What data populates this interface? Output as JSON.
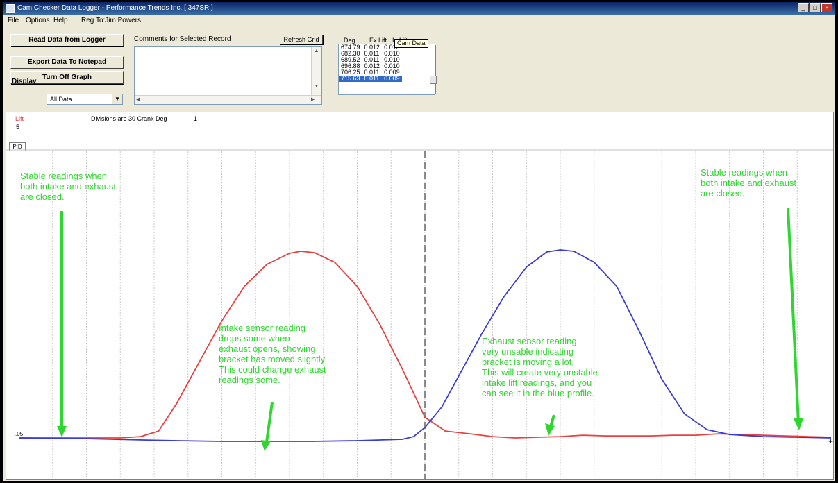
{
  "window": {
    "title": "Cam Checker Data Logger - Performance Trends Inc.  [ 347SR ]",
    "minimize_glyph": "_",
    "maximize_glyph": "□",
    "close_glyph": "×"
  },
  "menu": {
    "items": [
      "File",
      "Options",
      "Help"
    ],
    "reg_text": "Reg To:Jim Powers"
  },
  "toolbar": {
    "read_label": "Read Data from Logger",
    "export_label": "Export Data To Notepad",
    "graph_label": "Turn Off Graph",
    "display_label": "Display",
    "display_value": "All Data",
    "comments_label": "Comments for Selected Record",
    "refresh_label": "Refresh Grid"
  },
  "data_grid": {
    "headers": [
      "Deg",
      "Ex Lift",
      "In Lift"
    ],
    "rows": [
      [
        "674.79",
        "0.012",
        "0.010"
      ],
      [
        "682.30",
        "0.011",
        "0.010"
      ],
      [
        "689.52",
        "0.011",
        "0.010"
      ],
      [
        "696.88",
        "0.012",
        "0.010"
      ],
      [
        "706.25",
        "0.011",
        "0.009"
      ],
      [
        "715.63",
        "0.011",
        "0.009"
      ]
    ],
    "selected_row": 5,
    "popup_label": "Cam Data"
  },
  "graph": {
    "lift_label": "Lift",
    "lift_value": "5",
    "divisions_text": "Divisions are 30 Crank Deg",
    "divisions_value": "1",
    "tab_label": "PID",
    "y_tick": ".05",
    "colors": {
      "exhaust": "#e84040",
      "intake": "#3b3bd6",
      "annotation": "#2fd62f"
    }
  },
  "chart_data": {
    "type": "line",
    "x_unit": "crank deg",
    "grid_divisions_deg": 30,
    "xlim": [
      0,
      720
    ],
    "series": [
      {
        "color": "#e84040",
        "points": [
          [
            0,
            0.01
          ],
          [
            60,
            0.01
          ],
          [
            90,
            0.01
          ],
          [
            108,
            0.012
          ],
          [
            124,
            0.02
          ],
          [
            140,
            0.06
          ],
          [
            160,
            0.12
          ],
          [
            180,
            0.18
          ],
          [
            200,
            0.23
          ],
          [
            220,
            0.262
          ],
          [
            240,
            0.278
          ],
          [
            250,
            0.281
          ],
          [
            262,
            0.279
          ],
          [
            280,
            0.265
          ],
          [
            300,
            0.23
          ],
          [
            320,
            0.175
          ],
          [
            340,
            0.11
          ],
          [
            350,
            0.075
          ],
          [
            360,
            0.04
          ],
          [
            378,
            0.02
          ],
          [
            400,
            0.016
          ],
          [
            420,
            0.012
          ],
          [
            440,
            0.01
          ],
          [
            460,
            0.011
          ],
          [
            480,
            0.012
          ],
          [
            500,
            0.014
          ],
          [
            520,
            0.013
          ],
          [
            540,
            0.013
          ],
          [
            560,
            0.013
          ],
          [
            580,
            0.014
          ],
          [
            600,
            0.014
          ],
          [
            620,
            0.016
          ],
          [
            640,
            0.015
          ],
          [
            660,
            0.014
          ],
          [
            680,
            0.013
          ],
          [
            700,
            0.012
          ],
          [
            720,
            0.011
          ]
        ]
      },
      {
        "color": "#3b3bd6",
        "points": [
          [
            0,
            0.01
          ],
          [
            60,
            0.009
          ],
          [
            110,
            0.007
          ],
          [
            140,
            0.006
          ],
          [
            180,
            0.005
          ],
          [
            220,
            0.005
          ],
          [
            260,
            0.005
          ],
          [
            300,
            0.006
          ],
          [
            320,
            0.007
          ],
          [
            340,
            0.008
          ],
          [
            350,
            0.012
          ],
          [
            360,
            0.025
          ],
          [
            375,
            0.055
          ],
          [
            390,
            0.1
          ],
          [
            410,
            0.16
          ],
          [
            430,
            0.215
          ],
          [
            450,
            0.258
          ],
          [
            468,
            0.28
          ],
          [
            480,
            0.283
          ],
          [
            492,
            0.281
          ],
          [
            510,
            0.265
          ],
          [
            530,
            0.23
          ],
          [
            550,
            0.165
          ],
          [
            570,
            0.095
          ],
          [
            590,
            0.045
          ],
          [
            610,
            0.022
          ],
          [
            630,
            0.015
          ],
          [
            660,
            0.012
          ],
          [
            690,
            0.011
          ],
          [
            720,
            0.01
          ]
        ]
      }
    ]
  },
  "annotations": {
    "stable_left": "Stable readings when\nboth intake and exhaust\nare closed.",
    "stable_right": "Stable readings when\nboth intake and exhaust\nare closed.",
    "intake_note": "Intake sensor reading\ndrops some when\nexhaust opens, showing\nbracket has moved slightly.\nThis could change exhaust\nreadings some.",
    "exhaust_note": "Exhaust sensor reading\nvery unsable indicating\nbracket is moving a lot.\nThis will create very unstable\nintake lift readings, and you\ncan see it in the blue profile."
  }
}
